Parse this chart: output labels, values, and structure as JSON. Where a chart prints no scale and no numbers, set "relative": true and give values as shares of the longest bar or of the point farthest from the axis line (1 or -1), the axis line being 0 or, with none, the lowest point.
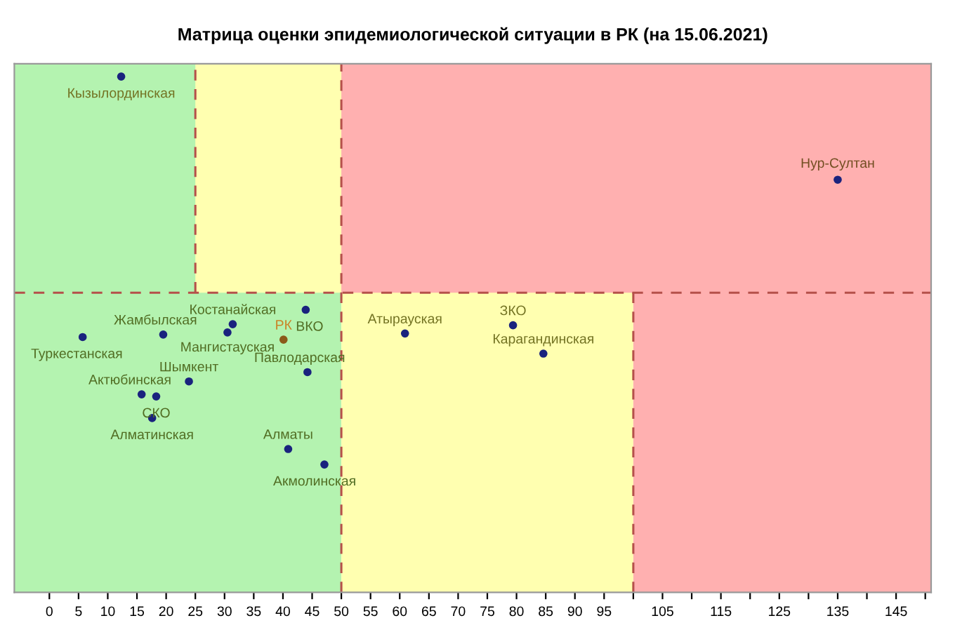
{
  "chart_data": {
    "type": "scatter",
    "title": "Матрица оценки эпидемиологической ситуации в РК (на 15.06.2021)",
    "relative": true,
    "marker": "circle",
    "grid": false,
    "legend": false,
    "xlim": [
      -6,
      151
    ],
    "xticks": [
      0,
      5,
      10,
      15,
      20,
      25,
      30,
      35,
      40,
      45,
      50,
      55,
      60,
      65,
      70,
      75,
      80,
      85,
      90,
      95,
      {
        "value": 100,
        "label": null
      },
      105,
      {
        "value": 110,
        "label": null
      },
      115,
      {
        "value": 120,
        "label": null
      },
      125,
      {
        "value": 130,
        "label": null
      },
      135,
      {
        "value": 140,
        "label": null
      },
      145,
      {
        "value": 150,
        "label": null
      }
    ],
    "series": [
      {
        "color": "#1a237e",
        "x": [
          12.3,
          135,
          5.7,
          19.5,
          31.4,
          30.5,
          43.9,
          40.1,
          44.2,
          23.9,
          15.8,
          18.3,
          17.6,
          40.9,
          47.1,
          60.9,
          79.4,
          84.6
        ],
        "values": [
          1,
          0.8,
          0.495,
          0.5,
          0.52,
          0.504,
          0.548,
          0.49,
          0.427,
          0.409,
          0.384,
          0.38,
          0.338,
          0.278,
          0.248,
          0.502,
          0.518,
          0.463
        ],
        "colors": [
          "#1a237e",
          "#1a237e",
          "#1a237e",
          "#1a237e",
          "#1a237e",
          "#1a237e",
          "#1a237e",
          "#8b5a1a",
          "#1a237e",
          "#1a237e",
          "#1a237e",
          "#1a237e",
          "#1a237e",
          "#1a237e",
          "#1a237e",
          "#1a237e",
          "#1a237e",
          "#1a237e"
        ]
      }
    ],
    "annotations": [
      {
        "text": "Кызылординская",
        "x": 12.3,
        "y": 1
      },
      {
        "text": "Нур-Султан",
        "x": 135,
        "y": 0.8
      },
      {
        "text": "Туркестанская",
        "x": 5.7,
        "y": 0.495
      },
      {
        "text": "Жамбылская",
        "x": 19.5,
        "y": 0.5
      },
      {
        "text": "Костанайская",
        "x": 31.4,
        "y": 0.52
      },
      {
        "text": "Мангистауская",
        "x": 30.5,
        "y": 0.504
      },
      {
        "text": "ВКО",
        "x": 43.9,
        "y": 0.548
      },
      {
        "text": "РК",
        "x": 40.1,
        "y": 0.49
      },
      {
        "text": "Павлодарская",
        "x": 44.2,
        "y": 0.427
      },
      {
        "text": "Шымкент",
        "x": 23.9,
        "y": 0.409
      },
      {
        "text": "Актюбинская",
        "x": 15.8,
        "y": 0.384
      },
      {
        "text": "СКО",
        "x": 18.3,
        "y": 0.38
      },
      {
        "text": "Алматинская",
        "x": 17.6,
        "y": 0.338
      },
      {
        "text": "Алматы",
        "x": 40.9,
        "y": 0.278
      },
      {
        "text": "Акмолинская",
        "x": 47.1,
        "y": 0.248
      },
      {
        "text": "Атырауская",
        "x": 60.9,
        "y": 0.502
      },
      {
        "text": "ЗКО",
        "x": 79.4,
        "y": 0.518
      },
      {
        "text": "Карагандинская",
        "x": 84.6,
        "y": 0.463
      }
    ],
    "bands": [
      {
        "axis": "x",
        "from": -6,
        "to": 50,
        "color": "#b4f3b0"
      },
      {
        "axis": "x",
        "from": 50,
        "to": 100,
        "color": "#ffffb0"
      },
      {
        "axis": "x",
        "from": 100,
        "to": 151,
        "color": "#ffb0b0"
      }
    ],
    "ref_lines": [
      {
        "axis": "y",
        "value": 0.581,
        "color": "#b5504a",
        "line_style": "dashed"
      },
      {
        "axis": "x",
        "value": 50,
        "color": "#b5504a",
        "line_style": "dashed"
      }
    ]
  }
}
